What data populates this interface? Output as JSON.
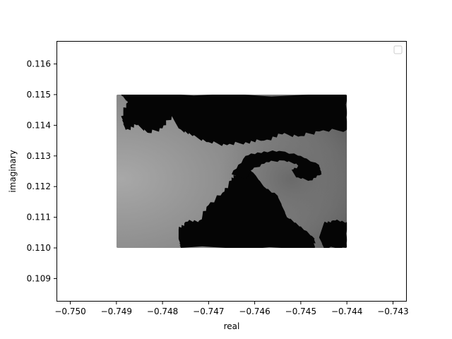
{
  "chart_data": {
    "type": "heatmap",
    "title": "",
    "xlabel": "real",
    "ylabel": "imaginary",
    "xlim": [
      -0.7503,
      -0.7427
    ],
    "ylim": [
      0.10825,
      0.11675
    ],
    "x_ticks": [
      {
        "value": -0.75,
        "label": "−0.750"
      },
      {
        "value": -0.749,
        "label": "−0.749"
      },
      {
        "value": -0.748,
        "label": "−0.748"
      },
      {
        "value": -0.747,
        "label": "−0.747"
      },
      {
        "value": -0.746,
        "label": "−0.746"
      },
      {
        "value": -0.745,
        "label": "−0.745"
      },
      {
        "value": -0.744,
        "label": "−0.744"
      },
      {
        "value": -0.743,
        "label": "−0.743"
      }
    ],
    "y_ticks": [
      {
        "value": 0.109,
        "label": "0.109"
      },
      {
        "value": 0.11,
        "label": "0.110"
      },
      {
        "value": 0.111,
        "label": "0.111"
      },
      {
        "value": 0.112,
        "label": "0.112"
      },
      {
        "value": 0.113,
        "label": "0.113"
      },
      {
        "value": 0.114,
        "label": "0.114"
      },
      {
        "value": 0.115,
        "label": "0.115"
      },
      {
        "value": 0.116,
        "label": "0.116"
      }
    ],
    "data_extent": {
      "x": [
        -0.749,
        -0.744
      ],
      "y": [
        0.11,
        0.115
      ]
    },
    "colormap": "grayscale",
    "grid": false,
    "legend": {
      "position": "top-right",
      "entries": []
    }
  }
}
